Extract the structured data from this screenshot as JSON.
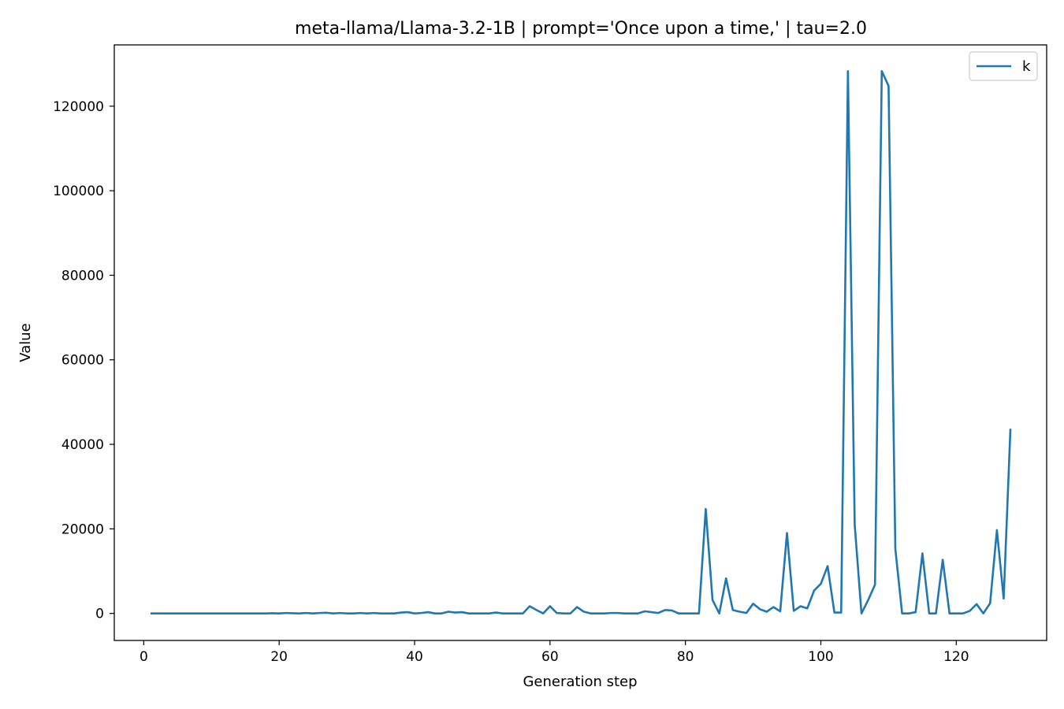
{
  "chart_data": {
    "type": "line",
    "title": "meta-llama/Llama-3.2-1B | prompt='Once upon a time,' | tau=2.0",
    "xlabel": "Generation step",
    "ylabel": "Value",
    "xlim": [
      -4.35,
      133.35
    ],
    "ylim": [
      -6400,
      134500
    ],
    "xticks": [
      0,
      20,
      40,
      60,
      80,
      100,
      120
    ],
    "xtick_labels": [
      "0",
      "20",
      "40",
      "60",
      "80",
      "100",
      "120"
    ],
    "yticks": [
      0,
      20000,
      40000,
      60000,
      80000,
      100000,
      120000
    ],
    "ytick_labels": [
      "0",
      "20000",
      "40000",
      "60000",
      "80000",
      "100000",
      "120000"
    ],
    "legend": {
      "position": "top-right",
      "entries": [
        "k"
      ]
    },
    "color": "#1f77b4",
    "series": [
      {
        "name": "k",
        "x": [
          1,
          2,
          3,
          4,
          5,
          6,
          7,
          8,
          9,
          10,
          11,
          12,
          13,
          14,
          15,
          16,
          17,
          18,
          19,
          20,
          21,
          22,
          23,
          24,
          25,
          26,
          27,
          28,
          29,
          30,
          31,
          32,
          33,
          34,
          35,
          36,
          37,
          38,
          39,
          40,
          41,
          42,
          43,
          44,
          45,
          46,
          47,
          48,
          49,
          50,
          51,
          52,
          53,
          54,
          55,
          56,
          57,
          58,
          59,
          60,
          61,
          62,
          63,
          64,
          65,
          66,
          67,
          68,
          69,
          70,
          71,
          72,
          73,
          74,
          75,
          76,
          77,
          78,
          79,
          80,
          81,
          82,
          83,
          84,
          85,
          86,
          87,
          88,
          89,
          90,
          91,
          92,
          93,
          94,
          95,
          96,
          97,
          98,
          99,
          100,
          101,
          102,
          103,
          104,
          105,
          106,
          107,
          108,
          109,
          110,
          111,
          112,
          113,
          114,
          115,
          116,
          117,
          118,
          119,
          120,
          121,
          122,
          123,
          124,
          125,
          126,
          127,
          128
        ],
        "values": [
          0,
          0,
          0,
          0,
          0,
          0,
          0,
          0,
          0,
          0,
          0,
          0,
          0,
          0,
          0,
          0,
          0,
          0,
          50,
          0,
          100,
          50,
          0,
          100,
          0,
          100,
          150,
          0,
          100,
          0,
          0,
          100,
          0,
          100,
          0,
          0,
          0,
          200,
          300,
          0,
          100,
          300,
          0,
          0,
          400,
          200,
          300,
          0,
          0,
          0,
          0,
          200,
          0,
          0,
          0,
          0,
          1700,
          800,
          0,
          1700,
          100,
          0,
          0,
          1500,
          400,
          0,
          0,
          0,
          100,
          100,
          0,
          0,
          0,
          500,
          300,
          100,
          800,
          700,
          0,
          0,
          0,
          0,
          24700,
          3200,
          0,
          8300,
          800,
          400,
          100,
          2300,
          1000,
          400,
          1500,
          500,
          19000,
          600,
          1700,
          1200,
          5400,
          7000,
          11200,
          200,
          200,
          128300,
          21000,
          0,
          3200,
          6800,
          128300,
          124800,
          15300,
          0,
          0,
          300,
          14200,
          0,
          0,
          12700,
          0,
          0,
          0,
          600,
          2200,
          0,
          2400,
          19700,
          3500,
          43700
        ]
      }
    ]
  }
}
